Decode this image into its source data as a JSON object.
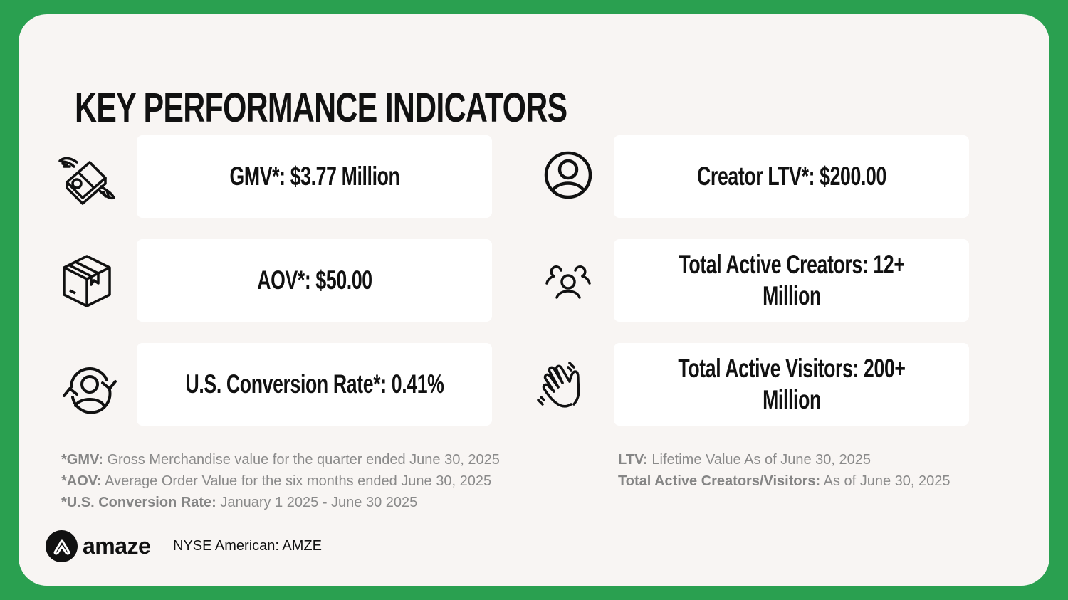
{
  "title": "KEY PERFORMANCE INDICATORS",
  "kpis": [
    {
      "label": "GMV*: $3.77 Million",
      "icon": "flying-money-icon"
    },
    {
      "label": "AOV*: $50.00",
      "icon": "package-box-icon"
    },
    {
      "label": "U.S. Conversion Rate*: 0.41%",
      "icon": "user-refresh-icon"
    },
    {
      "label": "Creator LTV*: $200.00",
      "icon": "user-circle-icon"
    },
    {
      "label": "Total Active Creators: 12+ Million",
      "icon": "users-group-icon"
    },
    {
      "label": "Total Active Visitors: 200+ Million",
      "icon": "waving-hand-icon"
    }
  ],
  "notes_left": [
    {
      "term": "*GMV:",
      "text": " Gross Merchandise value for the quarter ended June 30, 2025"
    },
    {
      "term": "*AOV:",
      "text": " Average Order Value for the six months ended June 30, 2025"
    },
    {
      "term": "*U.S. Conversion Rate:",
      "text": " January 1 2025 - June 30 2025"
    }
  ],
  "notes_right": [
    {
      "term": "LTV:",
      "text": " Lifetime Value As of June 30, 2025"
    },
    {
      "term": "Total Active Creators/Visitors:",
      "text": " As of June 30, 2025"
    }
  ],
  "footer": {
    "logo": "amaze",
    "ticker": "NYSE American: AMZE"
  },
  "colors": {
    "background": "#2aa050",
    "card": "#f8f5f3",
    "text": "#111111",
    "notes": "#8a8a8a"
  }
}
